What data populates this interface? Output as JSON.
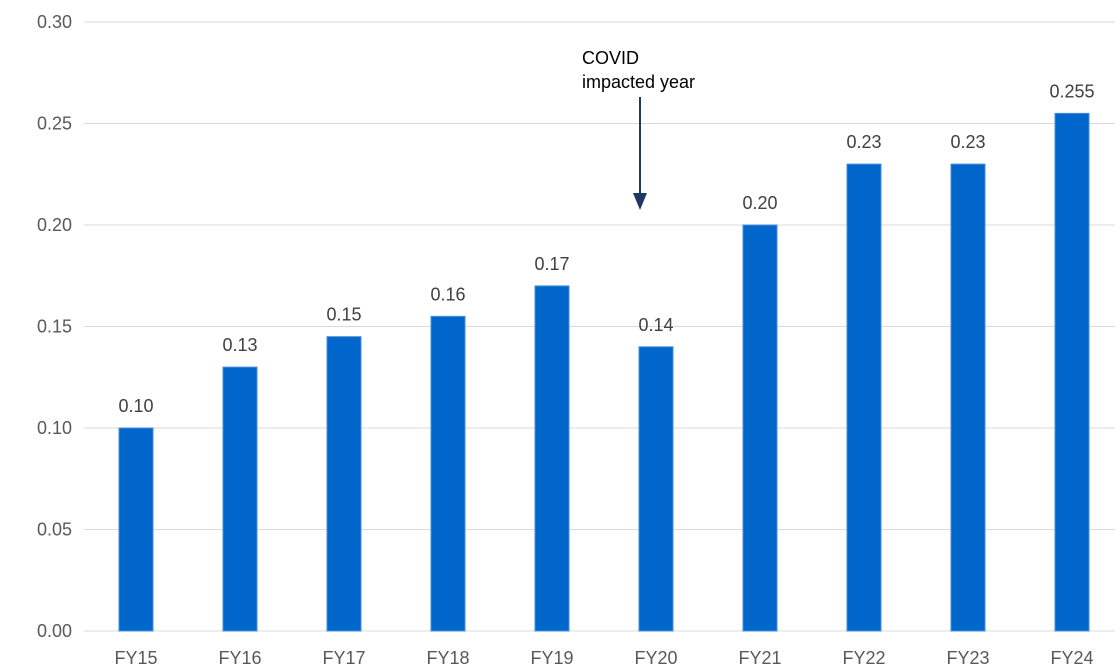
{
  "chart_data": {
    "type": "bar",
    "categories": [
      "FY15",
      "FY16",
      "FY17",
      "FY18",
      "FY19",
      "FY20",
      "FY21",
      "FY22",
      "FY23",
      "FY24"
    ],
    "values": [
      0.1,
      0.13,
      0.145,
      0.155,
      0.17,
      0.14,
      0.2,
      0.23,
      0.23,
      0.255
    ],
    "data_labels": [
      "0.10",
      "0.13",
      "0.15",
      "0.16",
      "0.17",
      "0.14",
      "0.20",
      "0.23",
      "0.23",
      "0.255"
    ],
    "y_ticks": [
      "0.00",
      "0.05",
      "0.10",
      "0.15",
      "0.20",
      "0.25",
      "0.30"
    ],
    "ylim": [
      0,
      0.3
    ],
    "grid": true,
    "legend": "none",
    "bar_color": "#0066CC",
    "annotation": {
      "lines": [
        "COVID",
        "impacted year"
      ],
      "target_category": "FY20",
      "arrow_color": "#1F3864"
    }
  }
}
